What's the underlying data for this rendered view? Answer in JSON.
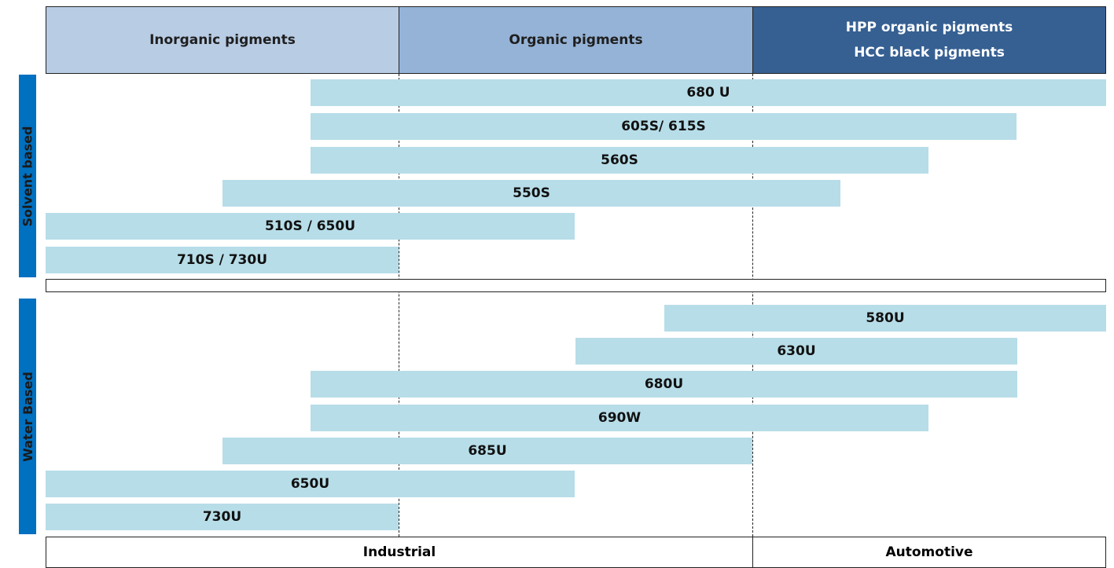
{
  "header": {
    "columns": [
      "Inorganic pigments",
      "Organic pigments",
      "HPP organic pigments",
      "HCC black pigments"
    ]
  },
  "groups": [
    {
      "label": "Solvent based",
      "products": [
        "680 U",
        "605S/ 615S",
        "560S",
        "550S",
        "510S / 650U",
        "710S / 730U"
      ]
    },
    {
      "label": "Water Based",
      "products": [
        "580U",
        "630U",
        "680U",
        "690W",
        "685U",
        "650U",
        "730U"
      ]
    }
  ],
  "footer": [
    "Industrial",
    "Automotive"
  ]
}
